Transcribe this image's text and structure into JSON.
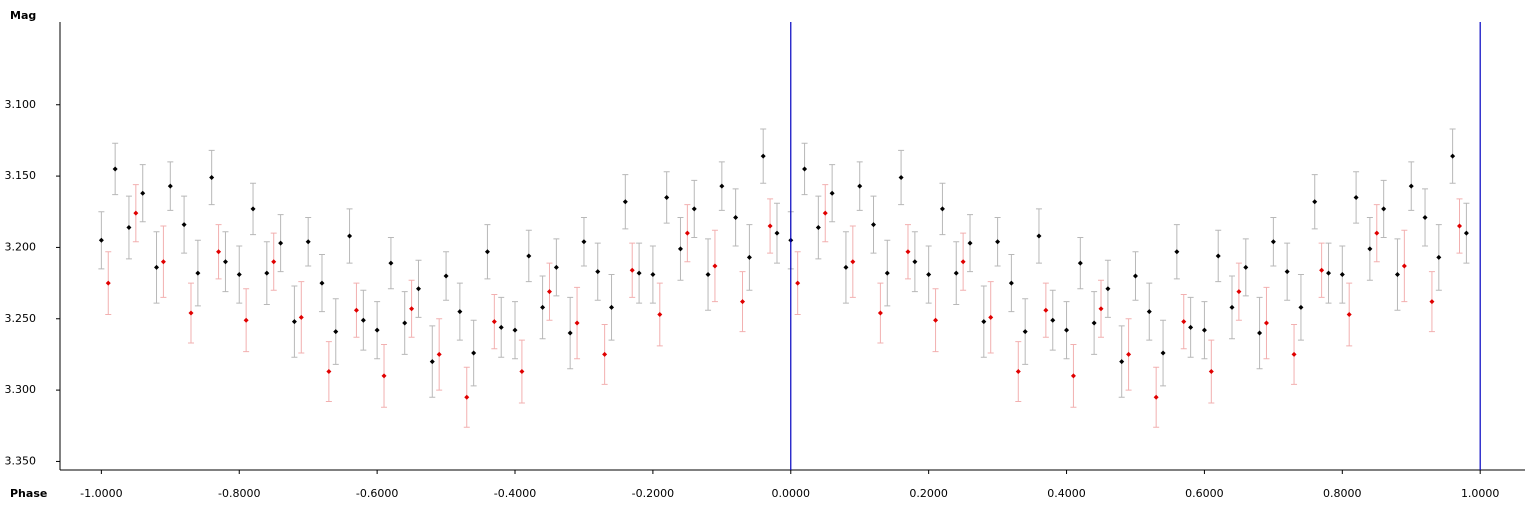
{
  "chart_data": {
    "type": "scatter",
    "x_label": "Phase",
    "y_label": "Mag",
    "invert_y": true,
    "xlim": [
      -1.06,
      1.065
    ],
    "ylim": [
      3.042,
      3.356
    ],
    "xticks": [
      {
        "value": -1,
        "label": "-1.0000"
      },
      {
        "value": -0.8,
        "label": "-0.8000"
      },
      {
        "value": -0.6,
        "label": "-0.6000"
      },
      {
        "value": -0.4,
        "label": "-0.4000"
      },
      {
        "value": -0.2,
        "label": "-0.2000"
      },
      {
        "value": 0,
        "label": "0.0000"
      },
      {
        "value": 0.2,
        "label": "0.2000"
      },
      {
        "value": 0.4,
        "label": "0.4000"
      },
      {
        "value": 0.6,
        "label": "0.6000"
      },
      {
        "value": 0.8,
        "label": "0.8000"
      },
      {
        "value": 1,
        "label": "1.0000"
      }
    ],
    "yticks": [
      {
        "value": 3.1,
        "label": "3.100"
      },
      {
        "value": 3.15,
        "label": "3.150"
      },
      {
        "value": 3.2,
        "label": "3.200"
      },
      {
        "value": 3.25,
        "label": "3.250"
      },
      {
        "value": 3.3,
        "label": "3.300"
      },
      {
        "value": 3.35,
        "label": "3.350"
      }
    ],
    "vlines": [
      0,
      1
    ],
    "vline_color": "#0000c0",
    "series": [
      {
        "color": "#e00000",
        "error_color": "#f2b0b0",
        "x": [
          -0.99,
          -0.95,
          -0.91,
          -0.87,
          -0.83,
          -0.79,
          -0.75,
          -0.71,
          -0.67,
          -0.63,
          -0.59,
          -0.55,
          -0.51,
          -0.47,
          -0.43,
          -0.39,
          -0.35,
          -0.31,
          -0.27,
          -0.23,
          -0.19,
          -0.15,
          -0.11,
          -0.07,
          -0.03,
          0.01,
          0.05,
          0.09,
          0.13,
          0.17,
          0.21,
          0.25,
          0.29,
          0.33,
          0.37,
          0.41,
          0.45,
          0.49,
          0.53,
          0.57,
          0.61,
          0.65,
          0.69,
          0.73,
          0.77,
          0.81,
          0.85,
          0.89,
          0.93,
          0.97
        ],
        "values": [
          3.225,
          3.176,
          3.21,
          3.246,
          3.203,
          3.251,
          3.21,
          3.249,
          3.287,
          3.244,
          3.29,
          3.243,
          3.275,
          3.305,
          3.252,
          3.287,
          3.231,
          3.253,
          3.275,
          3.216,
          3.247,
          3.19,
          3.213,
          3.238,
          3.185,
          3.225,
          3.176,
          3.21,
          3.246,
          3.203,
          3.251,
          3.21,
          3.249,
          3.287,
          3.244,
          3.29,
          3.243,
          3.275,
          3.305,
          3.252,
          3.287,
          3.231,
          3.253,
          3.275,
          3.216,
          3.247,
          3.19,
          3.213,
          3.238,
          3.185
        ],
        "errors": [
          0.022,
          0.02,
          0.025,
          0.021,
          0.019,
          0.022,
          0.02,
          0.025,
          0.021,
          0.019,
          0.022,
          0.02,
          0.025,
          0.021,
          0.019,
          0.022,
          0.02,
          0.025,
          0.021,
          0.019,
          0.022,
          0.02,
          0.025,
          0.021,
          0.019,
          0.022,
          0.02,
          0.025,
          0.021,
          0.019,
          0.022,
          0.02,
          0.025,
          0.021,
          0.019,
          0.022,
          0.02,
          0.025,
          0.021,
          0.019,
          0.022,
          0.02,
          0.025,
          0.021,
          0.019,
          0.022,
          0.02,
          0.025,
          0.021,
          0.019
        ]
      },
      {
        "color": "#000000",
        "error_color": "#b8b8b8",
        "x": [
          -1,
          -0.98,
          -0.96,
          -0.94,
          -0.92,
          -0.9,
          -0.88,
          -0.86,
          -0.84,
          -0.82,
          -0.8,
          -0.78,
          -0.76,
          -0.74,
          -0.72,
          -0.7,
          -0.68,
          -0.66,
          -0.64,
          -0.62,
          -0.6,
          -0.58,
          -0.56,
          -0.54,
          -0.52,
          -0.5,
          -0.48,
          -0.46,
          -0.44,
          -0.42,
          -0.4,
          -0.38,
          -0.36,
          -0.34,
          -0.32,
          -0.3,
          -0.28,
          -0.26,
          -0.24,
          -0.22,
          -0.2,
          -0.18,
          -0.16,
          -0.14,
          -0.12,
          -0.1,
          -0.08,
          -0.06,
          -0.04,
          -0.02,
          0,
          0.02,
          0.04,
          0.06,
          0.08,
          0.1,
          0.12,
          0.14,
          0.16,
          0.18,
          0.2,
          0.22,
          0.24,
          0.26,
          0.28,
          0.3,
          0.32,
          0.34,
          0.36,
          0.38,
          0.4,
          0.42,
          0.44,
          0.46,
          0.48,
          0.5,
          0.52,
          0.54,
          0.56,
          0.58,
          0.6,
          0.62,
          0.64,
          0.66,
          0.68,
          0.7,
          0.72,
          0.74,
          0.76,
          0.78,
          0.8,
          0.82,
          0.84,
          0.86,
          0.88,
          0.9,
          0.92,
          0.94,
          0.96,
          0.98
        ],
        "values": [
          3.195,
          3.145,
          3.186,
          3.162,
          3.214,
          3.157,
          3.184,
          3.218,
          3.151,
          3.21,
          3.219,
          3.173,
          3.218,
          3.197,
          3.252,
          3.196,
          3.225,
          3.259,
          3.192,
          3.251,
          3.258,
          3.211,
          3.253,
          3.229,
          3.28,
          3.22,
          3.245,
          3.274,
          3.203,
          3.256,
          3.258,
          3.206,
          3.242,
          3.214,
          3.26,
          3.196,
          3.217,
          3.242,
          3.168,
          3.218,
          3.219,
          3.165,
          3.201,
          3.173,
          3.219,
          3.157,
          3.179,
          3.207,
          3.136,
          3.19,
          3.195,
          3.145,
          3.186,
          3.162,
          3.214,
          3.157,
          3.184,
          3.218,
          3.151,
          3.21,
          3.219,
          3.173,
          3.218,
          3.197,
          3.252,
          3.196,
          3.225,
          3.259,
          3.192,
          3.251,
          3.258,
          3.211,
          3.253,
          3.229,
          3.28,
          3.22,
          3.245,
          3.274,
          3.203,
          3.256,
          3.258,
          3.206,
          3.242,
          3.214,
          3.26,
          3.196,
          3.217,
          3.242,
          3.168,
          3.218,
          3.219,
          3.165,
          3.201,
          3.173,
          3.219,
          3.157,
          3.179,
          3.207,
          3.136,
          3.19
        ],
        "errors": [
          0.02,
          0.018,
          0.022,
          0.02,
          0.025,
          0.017,
          0.02,
          0.023,
          0.019,
          0.021,
          0.02,
          0.018,
          0.022,
          0.02,
          0.025,
          0.017,
          0.02,
          0.023,
          0.019,
          0.021,
          0.02,
          0.018,
          0.022,
          0.02,
          0.025,
          0.017,
          0.02,
          0.023,
          0.019,
          0.021,
          0.02,
          0.018,
          0.022,
          0.02,
          0.025,
          0.017,
          0.02,
          0.023,
          0.019,
          0.021,
          0.02,
          0.018,
          0.022,
          0.02,
          0.025,
          0.017,
          0.02,
          0.023,
          0.019,
          0.021,
          0.02,
          0.018,
          0.022,
          0.02,
          0.025,
          0.017,
          0.02,
          0.023,
          0.019,
          0.021,
          0.02,
          0.018,
          0.022,
          0.02,
          0.025,
          0.017,
          0.02,
          0.023,
          0.019,
          0.021,
          0.02,
          0.018,
          0.022,
          0.02,
          0.025,
          0.017,
          0.02,
          0.023,
          0.019,
          0.021,
          0.02,
          0.018,
          0.022,
          0.02,
          0.025,
          0.017,
          0.02,
          0.023,
          0.019,
          0.021,
          0.02,
          0.018,
          0.022,
          0.02,
          0.025,
          0.017,
          0.02,
          0.023,
          0.019,
          0.021
        ]
      }
    ]
  }
}
